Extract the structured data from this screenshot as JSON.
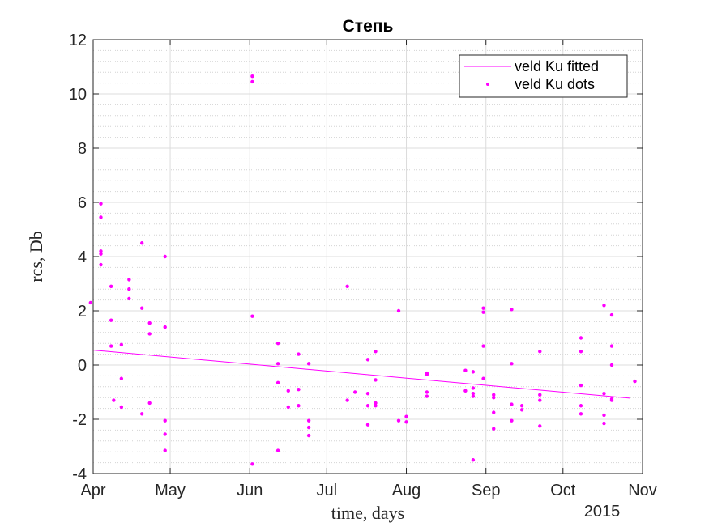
{
  "chart_data": {
    "type": "scatter",
    "title": "Степь",
    "xlabel": "time, days",
    "ylabel": "rcs, Db",
    "year_label": "2015",
    "xlim": [
      "2015-04-01",
      "2015-11-01"
    ],
    "ylim": [
      -4,
      12
    ],
    "x_ticks": [
      {
        "date": "2015-04-01",
        "label": "Apr"
      },
      {
        "date": "2015-05-01",
        "label": "May"
      },
      {
        "date": "2015-06-01",
        "label": "Jun"
      },
      {
        "date": "2015-07-01",
        "label": "Jul"
      },
      {
        "date": "2015-08-01",
        "label": "Aug"
      },
      {
        "date": "2015-09-01",
        "label": "Sep"
      },
      {
        "date": "2015-10-01",
        "label": "Oct"
      },
      {
        "date": "2015-11-01",
        "label": "Nov"
      }
    ],
    "y_ticks": [
      -4,
      -2,
      0,
      2,
      4,
      6,
      8,
      10,
      12
    ],
    "grid": true,
    "minor_grid_y": true,
    "legend_position": "top-right",
    "series": [
      {
        "name": "veld Ku fitted",
        "type": "line",
        "color": "#ff00ff",
        "points": [
          {
            "x": "2015-04-01",
            "y": 0.55
          },
          {
            "x": "2015-10-27",
            "y": -1.22
          }
        ]
      },
      {
        "name": "veld Ku dots",
        "type": "scatter",
        "color": "#ff00ff",
        "points": [
          {
            "x": "2015-03-31",
            "y": 2.3
          },
          {
            "x": "2015-04-04",
            "y": 5.95
          },
          {
            "x": "2015-04-04",
            "y": 5.45
          },
          {
            "x": "2015-04-04",
            "y": 4.2
          },
          {
            "x": "2015-04-04",
            "y": 4.1
          },
          {
            "x": "2015-04-04",
            "y": 3.7
          },
          {
            "x": "2015-04-08",
            "y": 2.9
          },
          {
            "x": "2015-04-08",
            "y": 1.65
          },
          {
            "x": "2015-04-08",
            "y": 0.7
          },
          {
            "x": "2015-04-09",
            "y": -1.3
          },
          {
            "x": "2015-04-12",
            "y": 0.75
          },
          {
            "x": "2015-04-12",
            "y": -0.5
          },
          {
            "x": "2015-04-12",
            "y": -1.55
          },
          {
            "x": "2015-04-15",
            "y": 3.15
          },
          {
            "x": "2015-04-15",
            "y": 2.8
          },
          {
            "x": "2015-04-15",
            "y": 2.45
          },
          {
            "x": "2015-04-20",
            "y": 4.5
          },
          {
            "x": "2015-04-20",
            "y": 2.1
          },
          {
            "x": "2015-04-20",
            "y": -1.8
          },
          {
            "x": "2015-04-23",
            "y": 1.55
          },
          {
            "x": "2015-04-23",
            "y": 1.15
          },
          {
            "x": "2015-04-23",
            "y": -1.4
          },
          {
            "x": "2015-04-29",
            "y": 4.0
          },
          {
            "x": "2015-04-29",
            "y": 1.4
          },
          {
            "x": "2015-04-29",
            "y": -2.05
          },
          {
            "x": "2015-04-29",
            "y": -2.55
          },
          {
            "x": "2015-04-29",
            "y": -3.15
          },
          {
            "x": "2015-06-02",
            "y": 10.65
          },
          {
            "x": "2015-06-02",
            "y": 10.45
          },
          {
            "x": "2015-06-02",
            "y": 1.8
          },
          {
            "x": "2015-06-02",
            "y": -3.65
          },
          {
            "x": "2015-06-12",
            "y": 0.8
          },
          {
            "x": "2015-06-12",
            "y": 0.05
          },
          {
            "x": "2015-06-12",
            "y": -0.65
          },
          {
            "x": "2015-06-12",
            "y": -3.15
          },
          {
            "x": "2015-06-16",
            "y": -0.95
          },
          {
            "x": "2015-06-16",
            "y": -1.55
          },
          {
            "x": "2015-06-20",
            "y": 0.4
          },
          {
            "x": "2015-06-20",
            "y": -0.9
          },
          {
            "x": "2015-06-20",
            "y": -1.5
          },
          {
            "x": "2015-06-24",
            "y": 0.05
          },
          {
            "x": "2015-06-24",
            "y": -2.05
          },
          {
            "x": "2015-06-24",
            "y": -2.3
          },
          {
            "x": "2015-06-24",
            "y": -2.6
          },
          {
            "x": "2015-07-09",
            "y": 2.9
          },
          {
            "x": "2015-07-09",
            "y": -1.3
          },
          {
            "x": "2015-07-12",
            "y": -1.0
          },
          {
            "x": "2015-07-17",
            "y": 0.2
          },
          {
            "x": "2015-07-17",
            "y": -1.05
          },
          {
            "x": "2015-07-17",
            "y": -1.5
          },
          {
            "x": "2015-07-17",
            "y": -2.2
          },
          {
            "x": "2015-07-20",
            "y": 0.5
          },
          {
            "x": "2015-07-20",
            "y": -0.55
          },
          {
            "x": "2015-07-20",
            "y": -1.4
          },
          {
            "x": "2015-07-20",
            "y": -1.5
          },
          {
            "x": "2015-07-29",
            "y": 2.0
          },
          {
            "x": "2015-07-29",
            "y": -2.05
          },
          {
            "x": "2015-08-01",
            "y": -1.9
          },
          {
            "x": "2015-08-01",
            "y": -2.1
          },
          {
            "x": "2015-08-09",
            "y": -0.3
          },
          {
            "x": "2015-08-09",
            "y": -0.35
          },
          {
            "x": "2015-08-09",
            "y": -1.0
          },
          {
            "x": "2015-08-09",
            "y": -1.15
          },
          {
            "x": "2015-08-24",
            "y": -0.2
          },
          {
            "x": "2015-08-24",
            "y": -0.95
          },
          {
            "x": "2015-08-27",
            "y": -0.25
          },
          {
            "x": "2015-08-27",
            "y": -0.85
          },
          {
            "x": "2015-08-27",
            "y": -1.05
          },
          {
            "x": "2015-08-27",
            "y": -1.15
          },
          {
            "x": "2015-08-27",
            "y": -3.5
          },
          {
            "x": "2015-08-31",
            "y": 2.1
          },
          {
            "x": "2015-08-31",
            "y": 1.95
          },
          {
            "x": "2015-08-31",
            "y": 0.7
          },
          {
            "x": "2015-08-31",
            "y": -0.5
          },
          {
            "x": "2015-09-04",
            "y": -1.1
          },
          {
            "x": "2015-09-04",
            "y": -1.2
          },
          {
            "x": "2015-09-04",
            "y": -1.75
          },
          {
            "x": "2015-09-04",
            "y": -2.35
          },
          {
            "x": "2015-09-11",
            "y": 2.05
          },
          {
            "x": "2015-09-11",
            "y": 0.05
          },
          {
            "x": "2015-09-11",
            "y": -1.45
          },
          {
            "x": "2015-09-11",
            "y": -2.05
          },
          {
            "x": "2015-09-15",
            "y": -1.5
          },
          {
            "x": "2015-09-15",
            "y": -1.65
          },
          {
            "x": "2015-09-22",
            "y": 0.5
          },
          {
            "x": "2015-09-22",
            "y": -1.1
          },
          {
            "x": "2015-09-22",
            "y": -1.3
          },
          {
            "x": "2015-09-22",
            "y": -2.25
          },
          {
            "x": "2015-10-08",
            "y": 1.0
          },
          {
            "x": "2015-10-08",
            "y": 0.5
          },
          {
            "x": "2015-10-08",
            "y": -0.75
          },
          {
            "x": "2015-10-08",
            "y": -1.5
          },
          {
            "x": "2015-10-08",
            "y": -1.8
          },
          {
            "x": "2015-10-17",
            "y": 2.2
          },
          {
            "x": "2015-10-17",
            "y": -1.05
          },
          {
            "x": "2015-10-17",
            "y": -1.85
          },
          {
            "x": "2015-10-17",
            "y": -2.15
          },
          {
            "x": "2015-10-20",
            "y": 1.85
          },
          {
            "x": "2015-10-20",
            "y": 0.7
          },
          {
            "x": "2015-10-20",
            "y": 0.0
          },
          {
            "x": "2015-10-20",
            "y": -1.25
          },
          {
            "x": "2015-10-20",
            "y": -1.3
          },
          {
            "x": "2015-10-29",
            "y": -0.6
          }
        ]
      }
    ]
  }
}
